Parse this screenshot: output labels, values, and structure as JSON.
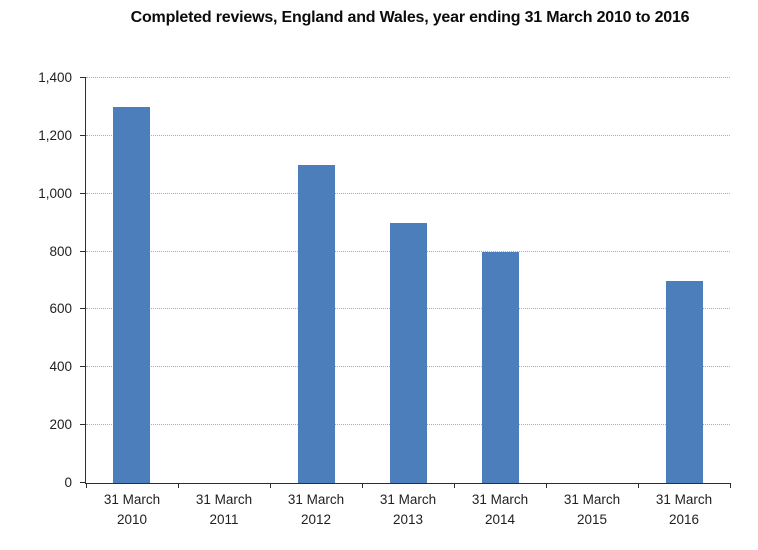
{
  "chart_data": {
    "type": "bar",
    "title": "Completed reviews, England and Wales, year ending 31 March 2010 to 2016",
    "categories": [
      [
        "31 March",
        "2010"
      ],
      [
        "31 March",
        "2011"
      ],
      [
        "31 March",
        "2012"
      ],
      [
        "31 March",
        "2013"
      ],
      [
        "31 March",
        "2014"
      ],
      [
        "31 March",
        "2015"
      ],
      [
        "31 March",
        "2016"
      ]
    ],
    "values": [
      1300,
      0,
      1100,
      900,
      800,
      0,
      700
    ],
    "xlabel": "",
    "ylabel": "",
    "ylim": [
      0,
      1400
    ],
    "ytick_values": [
      0,
      200,
      400,
      600,
      800,
      1000,
      1200,
      1400
    ],
    "ytick_labels": [
      "0",
      "200",
      "400",
      "600",
      "800",
      "1,000",
      "1,200",
      "1,400"
    ],
    "grid": "horizontal-dotted",
    "legend": "none"
  },
  "colors": {
    "bar": "#4D7EBC",
    "axis": "#2e2e2e",
    "grid": "#ababab",
    "title_text": "#0b0c0c",
    "tick_text": "#1f1f1f",
    "background": "#ffffff"
  }
}
